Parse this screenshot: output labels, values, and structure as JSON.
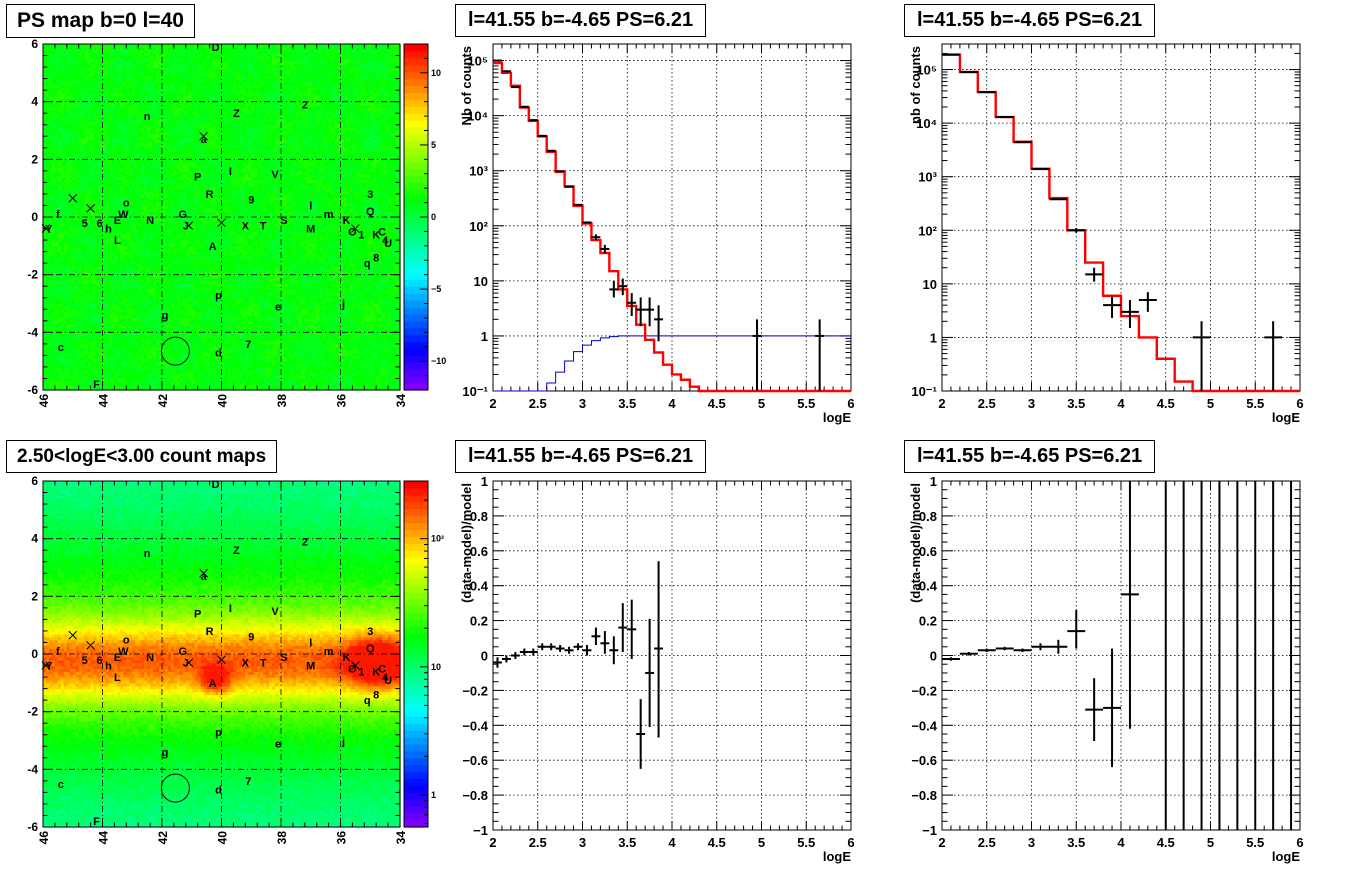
{
  "panels": {
    "ps_map_title": "PS map b=0 l=40",
    "count_map_title": "2.50<logE<3.00 count maps",
    "spec1_title": "l=41.55 b=-4.65 PS=6.21",
    "spec2_title": "l=41.55 b=-4.65 PS=6.21",
    "res1_title": "l=41.55 b=-4.65 PS=6.21",
    "res2_title": "l=41.55 b=-4.65 PS=6.21"
  },
  "chart_data": [
    {
      "id": "ps_map",
      "type": "heatmap",
      "title": "PS map b=0 l=40",
      "xlim": [
        46,
        34
      ],
      "ylim": [
        -6,
        6
      ],
      "x_ticks": [
        "46",
        "44",
        "42",
        "40",
        "38",
        "36",
        "34"
      ],
      "y_ticks": [
        "-6",
        "-4",
        "-2",
        "0",
        "2",
        "4",
        "6"
      ],
      "colorbar": {
        "scale": "linear",
        "ticks": [
          "10",
          "5",
          "0",
          "-5",
          "-10"
        ]
      },
      "circle": {
        "l": 41.55,
        "b": -4.65
      }
    },
    {
      "id": "count_map",
      "type": "heatmap",
      "title": "2.50<logE<3.00 count maps",
      "xlim": [
        46,
        34
      ],
      "ylim": [
        -6,
        6
      ],
      "x_ticks": [
        "46",
        "44",
        "42",
        "40",
        "38",
        "36",
        "34"
      ],
      "y_ticks": [
        "-6",
        "-4",
        "-2",
        "0",
        "2",
        "4",
        "6"
      ],
      "colorbar": {
        "scale": "log",
        "ticks": [
          "10²",
          "10",
          "1"
        ]
      },
      "circle": {
        "l": 41.55,
        "b": -4.65
      }
    },
    {
      "id": "spectrum_1",
      "type": "line",
      "title": "l=41.55 b=-4.65 PS=6.21",
      "xlabel": "logE",
      "ylabel": "Nb of counts",
      "xlim": [
        2,
        6
      ],
      "ylim": [
        0.1,
        200000
      ],
      "yscale": "log",
      "x_ticks": [
        "2",
        "2.5",
        "3",
        "3.5",
        "4",
        "4.5",
        "5",
        "5.5",
        "6"
      ],
      "y_ticks": [
        "10⁻¹",
        "1",
        "10",
        "10²",
        "10³",
        "10⁴",
        "10⁵"
      ],
      "step_edges": [
        2.0,
        2.1,
        2.2,
        2.3,
        2.4,
        2.5,
        2.6,
        2.7,
        2.8,
        2.9,
        3.0,
        3.1,
        3.2,
        3.3,
        3.4,
        3.5,
        3.6,
        3.7,
        3.8,
        3.9,
        4.0,
        4.1,
        4.2,
        4.3,
        4.4,
        4.5,
        4.6,
        6.0
      ],
      "red_model": [
        90000,
        60000,
        35000,
        14000,
        8000,
        4200,
        2200,
        950,
        520,
        230,
        110,
        55,
        32,
        15,
        7,
        3.5,
        1.6,
        0.85,
        0.5,
        0.3,
        0.2,
        0.16,
        0.12,
        0.1,
        0.1,
        0.1,
        0.1
      ],
      "blue_model": [
        0.1,
        0.1,
        0.1,
        0.1,
        0.1,
        0.1,
        0.14,
        0.22,
        0.35,
        0.52,
        0.68,
        0.82,
        0.92,
        0.97,
        1,
        1,
        1,
        1,
        1,
        1,
        1,
        1,
        1,
        1,
        1,
        1,
        1
      ],
      "data_points": [
        {
          "x": 2.05,
          "y": 100000,
          "lo": 100000,
          "hi": 100000,
          "xerr": 0.05
        },
        {
          "x": 2.15,
          "y": 64000,
          "lo": 64000,
          "hi": 64000,
          "xerr": 0.05
        },
        {
          "x": 2.25,
          "y": 33000,
          "lo": 33000,
          "hi": 33000,
          "xerr": 0.05
        },
        {
          "x": 2.35,
          "y": 14500,
          "lo": 14500,
          "hi": 14500,
          "xerr": 0.05
        },
        {
          "x": 2.45,
          "y": 8300,
          "lo": 8300,
          "hi": 8300,
          "xerr": 0.05
        },
        {
          "x": 2.55,
          "y": 4300,
          "lo": 4300,
          "hi": 4300,
          "xerr": 0.05
        },
        {
          "x": 2.65,
          "y": 2300,
          "lo": 2300,
          "hi": 2300,
          "xerr": 0.05
        },
        {
          "x": 2.75,
          "y": 980,
          "lo": 980,
          "hi": 980,
          "xerr": 0.05
        },
        {
          "x": 2.85,
          "y": 510,
          "lo": 510,
          "hi": 510,
          "xerr": 0.05
        },
        {
          "x": 2.95,
          "y": 240,
          "lo": 240,
          "hi": 240,
          "xerr": 0.05
        },
        {
          "x": 3.05,
          "y": 115,
          "lo": 115,
          "hi": 115,
          "xerr": 0.05
        },
        {
          "x": 3.15,
          "y": 62,
          "lo": 55,
          "hi": 70,
          "xerr": 0.05
        },
        {
          "x": 3.25,
          "y": 38,
          "lo": 32,
          "hi": 45,
          "xerr": 0.05
        },
        {
          "x": 3.35,
          "y": 7,
          "lo": 5,
          "hi": 10,
          "xerr": 0.05
        },
        {
          "x": 3.45,
          "y": 8,
          "lo": 5.5,
          "hi": 11,
          "xerr": 0.05
        },
        {
          "x": 3.55,
          "y": 4,
          "lo": 2.3,
          "hi": 6,
          "xerr": 0.05
        },
        {
          "x": 3.65,
          "y": 3,
          "lo": 1.5,
          "hi": 5,
          "xerr": 0.05
        },
        {
          "x": 3.75,
          "y": 3,
          "lo": 1.5,
          "hi": 5,
          "xerr": 0.05
        },
        {
          "x": 3.85,
          "y": 2,
          "lo": 0.8,
          "hi": 3.6,
          "xerr": 0.05
        },
        {
          "x": 4.95,
          "y": 1,
          "lo": 0.1,
          "hi": 2,
          "xerr": 0.05
        },
        {
          "x": 5.65,
          "y": 1,
          "lo": 0.1,
          "hi": 2,
          "xerr": 0.05
        }
      ]
    },
    {
      "id": "spectrum_2",
      "type": "line",
      "title": "l=41.55 b=-4.65 PS=6.21",
      "xlabel": "logE",
      "ylabel": "nb of counts",
      "xlim": [
        2,
        6
      ],
      "ylim": [
        0.1,
        300000
      ],
      "yscale": "log",
      "x_ticks": [
        "2",
        "2.5",
        "3",
        "3.5",
        "4",
        "4.5",
        "5",
        "5.5",
        "6"
      ],
      "y_ticks": [
        "10⁻¹",
        "1",
        "10",
        "10²",
        "10³",
        "10⁴",
        "10⁵"
      ],
      "step_edges": [
        2.0,
        2.2,
        2.4,
        2.6,
        2.8,
        3.0,
        3.2,
        3.4,
        3.6,
        3.8,
        4.0,
        4.2,
        4.4,
        4.6,
        4.8,
        6.0
      ],
      "red_model": [
        190000,
        90000,
        38000,
        13000,
        4500,
        1400,
        400,
        100,
        25,
        6,
        2.5,
        1,
        0.4,
        0.15,
        0.1
      ],
      "data_points": [
        {
          "x": 2.1,
          "y": 190000,
          "lo": 190000,
          "hi": 190000,
          "xerr": 0.1
        },
        {
          "x": 2.3,
          "y": 90000,
          "lo": 90000,
          "hi": 90000,
          "xerr": 0.1
        },
        {
          "x": 2.5,
          "y": 38000,
          "lo": 38000,
          "hi": 38000,
          "xerr": 0.1
        },
        {
          "x": 2.7,
          "y": 13000,
          "lo": 13000,
          "hi": 13000,
          "xerr": 0.1
        },
        {
          "x": 2.9,
          "y": 4400,
          "lo": 4400,
          "hi": 4400,
          "xerr": 0.1
        },
        {
          "x": 3.1,
          "y": 1400,
          "lo": 1400,
          "hi": 1400,
          "xerr": 0.1
        },
        {
          "x": 3.3,
          "y": 380,
          "lo": 380,
          "hi": 380,
          "xerr": 0.1
        },
        {
          "x": 3.5,
          "y": 100,
          "lo": 90,
          "hi": 110,
          "xerr": 0.1
        },
        {
          "x": 3.7,
          "y": 15,
          "lo": 11,
          "hi": 20,
          "xerr": 0.1
        },
        {
          "x": 3.9,
          "y": 4,
          "lo": 2.3,
          "hi": 6,
          "xerr": 0.1
        },
        {
          "x": 4.1,
          "y": 3,
          "lo": 1.5,
          "hi": 5,
          "xerr": 0.1
        },
        {
          "x": 4.3,
          "y": 5,
          "lo": 3,
          "hi": 7,
          "xerr": 0.1
        },
        {
          "x": 4.9,
          "y": 1,
          "lo": 0.1,
          "hi": 2,
          "xerr": 0.1
        },
        {
          "x": 5.7,
          "y": 1,
          "lo": 0.1,
          "hi": 2,
          "xerr": 0.1
        }
      ]
    },
    {
      "id": "residual_1",
      "type": "scatter",
      "title": "l=41.55 b=-4.65 PS=6.21",
      "xlabel": "logE",
      "ylabel": "(data-model)/model",
      "xlim": [
        2,
        6
      ],
      "ylim": [
        -1,
        1
      ],
      "x_ticks": [
        "2",
        "2.5",
        "3",
        "3.5",
        "4",
        "4.5",
        "5",
        "5.5",
        "6"
      ],
      "y_ticks": [
        "-1",
        "-0.8",
        "-0.6",
        "-0.4",
        "-0.2",
        "0",
        "0.2",
        "0.4",
        "0.6",
        "0.8",
        "1"
      ],
      "data_points": [
        {
          "x": 2.05,
          "y": -0.04,
          "lo": -0.07,
          "hi": -0.01,
          "xerr": 0.05
        },
        {
          "x": 2.15,
          "y": -0.02,
          "lo": -0.04,
          "hi": 0.0,
          "xerr": 0.05
        },
        {
          "x": 2.25,
          "y": 0.0,
          "lo": -0.02,
          "hi": 0.02,
          "xerr": 0.05
        },
        {
          "x": 2.35,
          "y": 0.02,
          "lo": 0.0,
          "hi": 0.04,
          "xerr": 0.05
        },
        {
          "x": 2.45,
          "y": 0.02,
          "lo": 0.0,
          "hi": 0.04,
          "xerr": 0.05
        },
        {
          "x": 2.55,
          "y": 0.05,
          "lo": 0.03,
          "hi": 0.07,
          "xerr": 0.05
        },
        {
          "x": 2.65,
          "y": 0.05,
          "lo": 0.03,
          "hi": 0.07,
          "xerr": 0.05
        },
        {
          "x": 2.75,
          "y": 0.04,
          "lo": 0.02,
          "hi": 0.06,
          "xerr": 0.05
        },
        {
          "x": 2.85,
          "y": 0.03,
          "lo": 0.01,
          "hi": 0.05,
          "xerr": 0.05
        },
        {
          "x": 2.95,
          "y": 0.05,
          "lo": 0.03,
          "hi": 0.07,
          "xerr": 0.05
        },
        {
          "x": 3.05,
          "y": 0.03,
          "lo": 0.0,
          "hi": 0.06,
          "xerr": 0.05
        },
        {
          "x": 3.15,
          "y": 0.11,
          "lo": 0.06,
          "hi": 0.16,
          "xerr": 0.05
        },
        {
          "x": 3.25,
          "y": 0.07,
          "lo": 0.01,
          "hi": 0.14,
          "xerr": 0.05
        },
        {
          "x": 3.35,
          "y": 0.03,
          "lo": -0.05,
          "hi": 0.11,
          "xerr": 0.05
        },
        {
          "x": 3.45,
          "y": 0.16,
          "lo": 0.02,
          "hi": 0.3,
          "xerr": 0.05
        },
        {
          "x": 3.55,
          "y": 0.15,
          "lo": -0.02,
          "hi": 0.32,
          "xerr": 0.05
        },
        {
          "x": 3.65,
          "y": -0.45,
          "lo": -0.65,
          "hi": -0.25,
          "xerr": 0.05
        },
        {
          "x": 3.75,
          "y": -0.1,
          "lo": -0.41,
          "hi": 0.21,
          "xerr": 0.05
        },
        {
          "x": 3.85,
          "y": 0.04,
          "lo": -0.47,
          "hi": 0.54,
          "xerr": 0.05
        }
      ]
    },
    {
      "id": "residual_2",
      "type": "scatter",
      "title": "l=41.55 b=-4.65 PS=6.21",
      "xlabel": "logE",
      "ylabel": "(data-model)/model",
      "xlim": [
        2,
        6
      ],
      "ylim": [
        -1,
        1
      ],
      "x_ticks": [
        "2",
        "2.5",
        "3",
        "3.5",
        "4",
        "4.5",
        "5",
        "5.5",
        "6"
      ],
      "y_ticks": [
        "-1",
        "-0.8",
        "-0.6",
        "-0.4",
        "-0.2",
        "0",
        "0.2",
        "0.4",
        "0.6",
        "0.8",
        "1"
      ],
      "data_points": [
        {
          "x": 2.1,
          "y": -0.02,
          "lo": -0.03,
          "hi": -0.01,
          "xerr": 0.1
        },
        {
          "x": 2.3,
          "y": 0.01,
          "lo": 0.0,
          "hi": 0.02,
          "xerr": 0.1
        },
        {
          "x": 2.5,
          "y": 0.03,
          "lo": 0.02,
          "hi": 0.04,
          "xerr": 0.1
        },
        {
          "x": 2.7,
          "y": 0.04,
          "lo": 0.03,
          "hi": 0.05,
          "xerr": 0.1
        },
        {
          "x": 2.9,
          "y": 0.03,
          "lo": 0.02,
          "hi": 0.04,
          "xerr": 0.1
        },
        {
          "x": 3.1,
          "y": 0.05,
          "lo": 0.03,
          "hi": 0.07,
          "xerr": 0.1
        },
        {
          "x": 3.3,
          "y": 0.05,
          "lo": 0.01,
          "hi": 0.09,
          "xerr": 0.1
        },
        {
          "x": 3.5,
          "y": 0.14,
          "lo": 0.04,
          "hi": 0.26,
          "xerr": 0.1
        },
        {
          "x": 3.7,
          "y": -0.31,
          "lo": -0.49,
          "hi": -0.13,
          "xerr": 0.1
        },
        {
          "x": 3.9,
          "y": -0.3,
          "lo": -0.64,
          "hi": 0.04,
          "xerr": 0.1
        },
        {
          "x": 4.1,
          "y": 0.35,
          "lo": -0.42,
          "hi": 1.0,
          "xerr": 0.1
        },
        {
          "x": 4.5,
          "y": null,
          "lo": -1,
          "hi": 1,
          "xerr": 0
        },
        {
          "x": 4.7,
          "y": null,
          "lo": -1,
          "hi": 1,
          "xerr": 0
        },
        {
          "x": 4.9,
          "y": null,
          "lo": -1,
          "hi": 1,
          "xerr": 0
        },
        {
          "x": 5.1,
          "y": null,
          "lo": -1,
          "hi": 1,
          "xerr": 0
        },
        {
          "x": 5.3,
          "y": null,
          "lo": -1,
          "hi": 1,
          "xerr": 0
        },
        {
          "x": 5.5,
          "y": null,
          "lo": -1,
          "hi": 1,
          "xerr": 0
        },
        {
          "x": 5.7,
          "y": null,
          "lo": -1,
          "hi": 1,
          "xerr": 0
        },
        {
          "x": 5.9,
          "y": null,
          "lo": -1,
          "hi": 1,
          "xerr": 0
        }
      ]
    }
  ],
  "map_labels": [
    {
      "t": "D",
      "l": 40.2,
      "b": 5.9
    },
    {
      "t": "2",
      "l": 37.2,
      "b": 3.9
    },
    {
      "t": "Z",
      "l": 39.5,
      "b": 3.6
    },
    {
      "t": "n",
      "l": 42.5,
      "b": 3.5
    },
    {
      "t": "a",
      "l": 40.6,
      "b": 2.7
    },
    {
      "t": "P",
      "l": 40.8,
      "b": 1.4
    },
    {
      "t": "I",
      "l": 39.7,
      "b": 1.6
    },
    {
      "t": "V",
      "l": 38.2,
      "b": 1.5
    },
    {
      "t": "R",
      "l": 40.4,
      "b": 0.8
    },
    {
      "t": "9",
      "l": 39.0,
      "b": 0.6
    },
    {
      "t": "3",
      "l": 35.0,
      "b": 0.8
    },
    {
      "t": "l",
      "l": 37.0,
      "b": 0.4
    },
    {
      "t": "o",
      "l": 43.2,
      "b": 0.5
    },
    {
      "t": "f",
      "l": 45.5,
      "b": 0.1
    },
    {
      "t": "W",
      "l": 43.3,
      "b": 0.1
    },
    {
      "t": "N",
      "l": 42.4,
      "b": -0.1
    },
    {
      "t": "G",
      "l": 41.3,
      "b": 0.1
    },
    {
      "t": "X",
      "l": 39.2,
      "b": -0.3
    },
    {
      "t": "T",
      "l": 38.6,
      "b": -0.3
    },
    {
      "t": "S",
      "l": 37.9,
      "b": -0.1
    },
    {
      "t": "M",
      "l": 37.0,
      "b": -0.4
    },
    {
      "t": "m",
      "l": 36.4,
      "b": 0.1
    },
    {
      "t": "K",
      "l": 35.8,
      "b": -0.1
    },
    {
      "t": "Q",
      "l": 35.0,
      "b": 0.2
    },
    {
      "t": "Y",
      "l": 45.8,
      "b": -0.4
    },
    {
      "t": "5",
      "l": 44.6,
      "b": -0.2
    },
    {
      "t": "6",
      "l": 44.1,
      "b": -0.2
    },
    {
      "t": "h",
      "l": 43.8,
      "b": -0.4
    },
    {
      "t": "E",
      "l": 43.5,
      "b": -0.1
    },
    {
      "t": "J",
      "l": 41.2,
      "b": -0.3
    },
    {
      "t": "O",
      "l": 35.6,
      "b": -0.5
    },
    {
      "t": "1",
      "l": 35.3,
      "b": -0.6
    },
    {
      "t": "K",
      "l": 34.8,
      "b": -0.6
    },
    {
      "t": "C",
      "l": 34.6,
      "b": -0.5
    },
    {
      "t": "U",
      "l": 34.4,
      "b": -0.9
    },
    {
      "t": "4",
      "l": 34.5,
      "b": -0.8
    },
    {
      "t": "L",
      "l": 43.5,
      "b": -0.8
    },
    {
      "t": "A",
      "l": 40.3,
      "b": -1.0
    },
    {
      "t": "q",
      "l": 35.1,
      "b": -1.6
    },
    {
      "t": "8",
      "l": 34.8,
      "b": -1.4
    },
    {
      "t": "p",
      "l": 40.1,
      "b": -2.7
    },
    {
      "t": "e",
      "l": 38.1,
      "b": -3.1
    },
    {
      "t": "j",
      "l": 35.9,
      "b": -3.0
    },
    {
      "t": "g",
      "l": 41.9,
      "b": -3.4
    },
    {
      "t": "c",
      "l": 45.4,
      "b": -4.5
    },
    {
      "t": "7",
      "l": 39.1,
      "b": -4.4
    },
    {
      "t": "d",
      "l": 40.1,
      "b": -4.7
    },
    {
      "t": "F",
      "l": 44.2,
      "b": -5.8
    }
  ],
  "map_crosses": [
    {
      "l": 40.6,
      "b": 2.8
    },
    {
      "l": 45.0,
      "b": 0.65
    },
    {
      "l": 44.4,
      "b": 0.3
    },
    {
      "l": 45.9,
      "b": -0.4
    },
    {
      "l": 41.1,
      "b": -0.3
    },
    {
      "l": 35.5,
      "b": -0.4
    },
    {
      "l": 40.0,
      "b": -0.2
    }
  ]
}
